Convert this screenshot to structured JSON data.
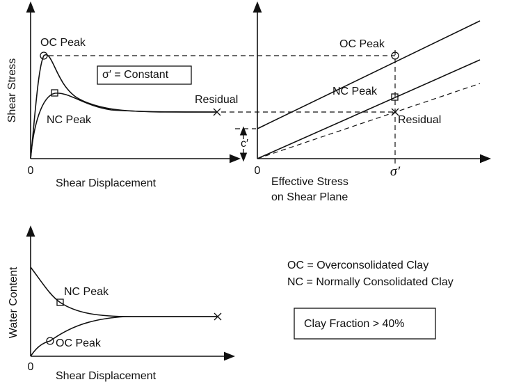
{
  "top_left": {
    "y_label": "Shear Stress",
    "origin": "0",
    "x_label": "Shear Displacement",
    "oc_peak": "OC Peak",
    "nc_peak": "NC Peak",
    "residual": "Residual",
    "note": "σ′ = Constant"
  },
  "top_right": {
    "oc_peak": "OC Peak",
    "nc_peak": "NC Peak",
    "residual": "Residual",
    "cohesion": "c′",
    "origin": "0",
    "sigma": "σ′",
    "x_label_line1": "Effective Stress",
    "x_label_line2": "on Shear Plane"
  },
  "bottom_left": {
    "y_label": "Water Content",
    "nc_peak": "NC Peak",
    "oc_peak": "OC Peak",
    "origin": "0",
    "x_label": "Shear Displacement"
  },
  "legend": {
    "oc": "OC = Overconsolidated Clay",
    "nc": "NC = Normally Consolidated Clay",
    "clay_fraction": "Clay Fraction > 40%"
  }
}
